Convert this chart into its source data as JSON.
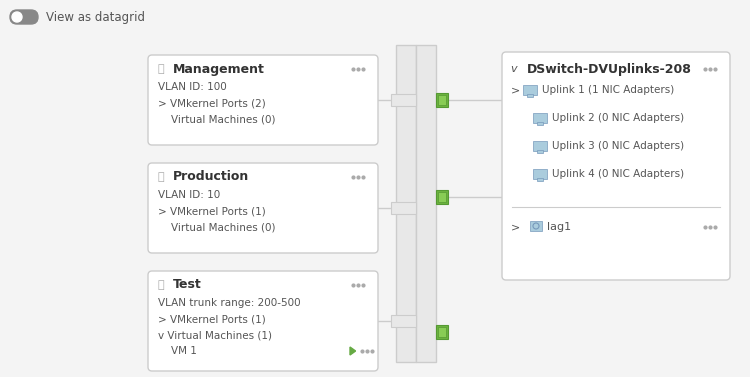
{
  "bg_color": "#f4f4f4",
  "white": "#ffffff",
  "border_color": "#cccccc",
  "text_color": "#555555",
  "dark_text": "#333333",
  "green_color": "#6db33f",
  "blue_icon": "#7ab3cc",
  "title_text": "View as datagrid",
  "toggle_bg": "#888888",
  "toggle_circle": "#ffffff",
  "left_cards": [
    {
      "title": "Management",
      "lines": [
        "VLAN ID: 100",
        "> VMkernel Ports (2)",
        "    Virtual Machines (0)"
      ]
    },
    {
      "title": "Production",
      "lines": [
        "VLAN ID: 10",
        "> VMkernel Ports (1)",
        "    Virtual Machines (0)"
      ]
    },
    {
      "title": "Test",
      "lines": [
        "VLAN trunk range: 200-500",
        "> VMkernel Ports (1)",
        "v Virtual Machines (1)",
        "    VM 1"
      ]
    }
  ],
  "right_card": {
    "title": "DSwitch-DVUplinks-208",
    "uplinks": [
      "> □ Uplink 1 (1 NIC Adapters)",
      "   □ Uplink 2 (0 NIC Adapters)",
      "   □ Uplink 3 (0 NIC Adapters)",
      "   □ Uplink 4 (0 NIC Adapters)"
    ],
    "lag": "> □ lag1"
  }
}
